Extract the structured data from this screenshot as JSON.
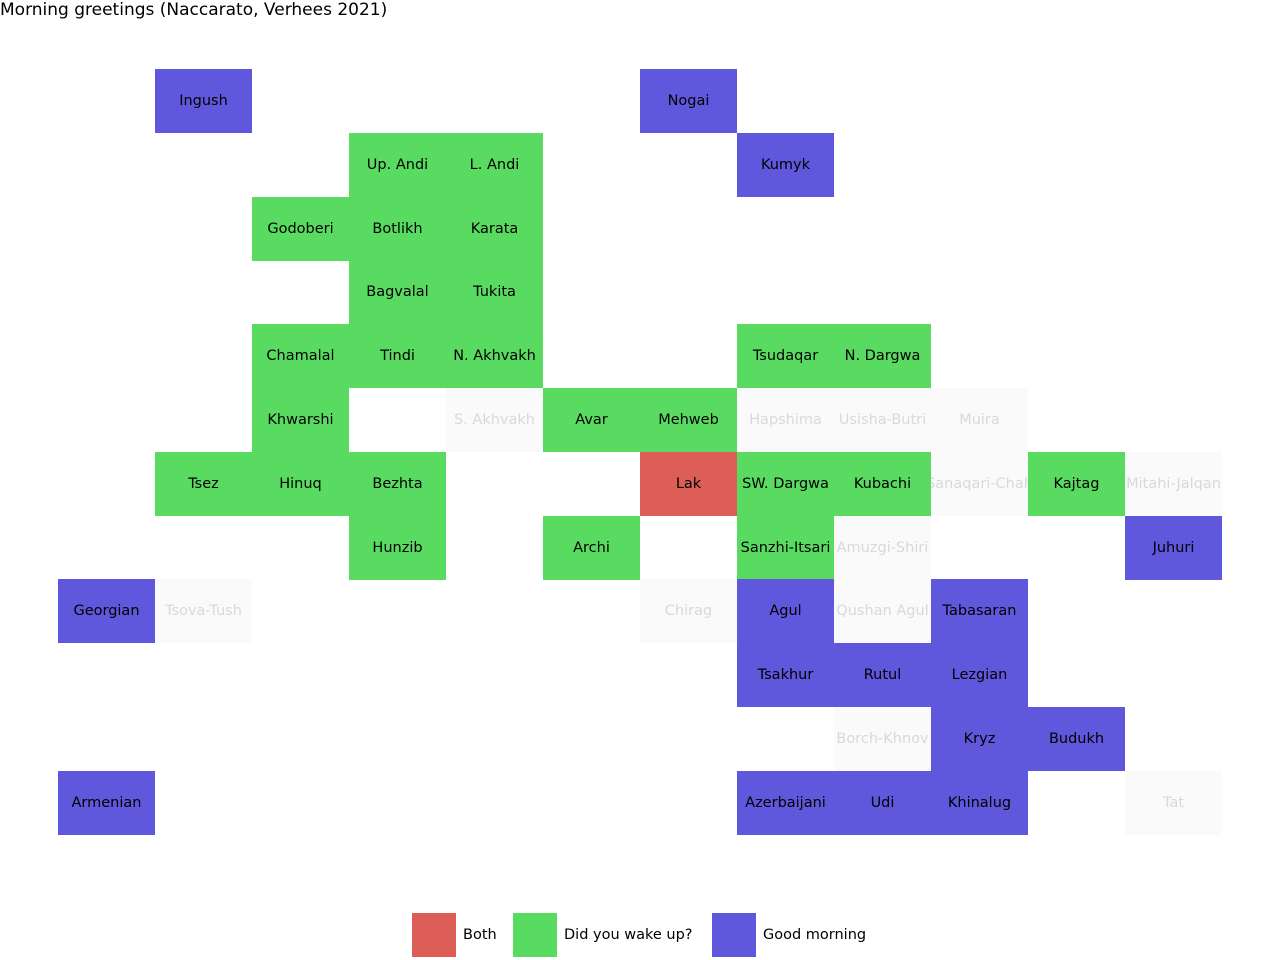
{
  "chart_data": {
    "type": "heatmap",
    "title": "Morning greetings (Naccarato, Verhees 2021)",
    "colors": {
      "both": "#dd5e57",
      "wake": "#58db60",
      "good": "#5f57dc",
      "none": "#fafafa"
    },
    "legend": [
      {
        "key": "both",
        "label": "Both"
      },
      {
        "key": "wake",
        "label": "Did you wake up?"
      },
      {
        "key": "good",
        "label": "Good morning"
      }
    ],
    "legend_position": "bottom-center",
    "grid": {
      "columns": 12,
      "rows": 12
    },
    "cells": [
      {
        "name": "Ingush",
        "col": 1,
        "row": 0,
        "category": "good"
      },
      {
        "name": "Nogai",
        "col": 6,
        "row": 0,
        "category": "good"
      },
      {
        "name": "Up. Andi",
        "col": 3,
        "row": 1,
        "category": "wake"
      },
      {
        "name": "L. Andi",
        "col": 4,
        "row": 1,
        "category": "wake"
      },
      {
        "name": "Kumyk",
        "col": 7,
        "row": 1,
        "category": "good"
      },
      {
        "name": "Godoberi",
        "col": 2,
        "row": 2,
        "category": "wake"
      },
      {
        "name": "Botlikh",
        "col": 3,
        "row": 2,
        "category": "wake"
      },
      {
        "name": "Karata",
        "col": 4,
        "row": 2,
        "category": "wake"
      },
      {
        "name": "Bagvalal",
        "col": 3,
        "row": 3,
        "category": "wake"
      },
      {
        "name": "Tukita",
        "col": 4,
        "row": 3,
        "category": "wake"
      },
      {
        "name": "Chamalal",
        "col": 2,
        "row": 4,
        "category": "wake"
      },
      {
        "name": "Tindi",
        "col": 3,
        "row": 4,
        "category": "wake"
      },
      {
        "name": "N. Akhvakh",
        "col": 4,
        "row": 4,
        "category": "wake"
      },
      {
        "name": "Tsudaqar",
        "col": 7,
        "row": 4,
        "category": "wake"
      },
      {
        "name": "N. Dargwa",
        "col": 8,
        "row": 4,
        "category": "wake"
      },
      {
        "name": "Khwarshi",
        "col": 2,
        "row": 5,
        "category": "wake"
      },
      {
        "name": "S. Akhvakh",
        "col": 4,
        "row": 5,
        "category": "none"
      },
      {
        "name": "Avar",
        "col": 5,
        "row": 5,
        "category": "wake"
      },
      {
        "name": "Mehweb",
        "col": 6,
        "row": 5,
        "category": "wake"
      },
      {
        "name": "Hapshima",
        "col": 7,
        "row": 5,
        "category": "none"
      },
      {
        "name": "Usisha-Butri",
        "col": 8,
        "row": 5,
        "category": "none"
      },
      {
        "name": "Muira",
        "col": 9,
        "row": 5,
        "category": "none"
      },
      {
        "name": "Tsez",
        "col": 1,
        "row": 6,
        "category": "wake"
      },
      {
        "name": "Hinuq",
        "col": 2,
        "row": 6,
        "category": "wake"
      },
      {
        "name": "Bezhta",
        "col": 3,
        "row": 6,
        "category": "wake"
      },
      {
        "name": "Lak",
        "col": 6,
        "row": 6,
        "category": "both"
      },
      {
        "name": "SW. Dargwa",
        "col": 7,
        "row": 6,
        "category": "wake"
      },
      {
        "name": "Kubachi",
        "col": 8,
        "row": 6,
        "category": "wake"
      },
      {
        "name": "Sanaqari-Chah",
        "col": 9,
        "row": 6,
        "category": "none"
      },
      {
        "name": "Kajtag",
        "col": 10,
        "row": 6,
        "category": "wake"
      },
      {
        "name": "Mitahi-Jalqan",
        "col": 11,
        "row": 6,
        "category": "none"
      },
      {
        "name": "Hunzib",
        "col": 3,
        "row": 7,
        "category": "wake"
      },
      {
        "name": "Archi",
        "col": 5,
        "row": 7,
        "category": "wake"
      },
      {
        "name": "Sanzhi-Itsari",
        "col": 7,
        "row": 7,
        "category": "wake"
      },
      {
        "name": "Amuzgi-Shiri",
        "col": 8,
        "row": 7,
        "category": "none"
      },
      {
        "name": "Juhuri",
        "col": 11,
        "row": 7,
        "category": "good"
      },
      {
        "name": "Georgian",
        "col": 0,
        "row": 8,
        "category": "good"
      },
      {
        "name": "Tsova-Tush",
        "col": 1,
        "row": 8,
        "category": "none"
      },
      {
        "name": "Chirag",
        "col": 6,
        "row": 8,
        "category": "none"
      },
      {
        "name": "Agul",
        "col": 7,
        "row": 8,
        "category": "good"
      },
      {
        "name": "Qushan Agul",
        "col": 8,
        "row": 8,
        "category": "none"
      },
      {
        "name": "Tabasaran",
        "col": 9,
        "row": 8,
        "category": "good"
      },
      {
        "name": "Tsakhur",
        "col": 7,
        "row": 9,
        "category": "good"
      },
      {
        "name": "Rutul",
        "col": 8,
        "row": 9,
        "category": "good"
      },
      {
        "name": "Lezgian",
        "col": 9,
        "row": 9,
        "category": "good"
      },
      {
        "name": "Borch-Khnov",
        "col": 8,
        "row": 10,
        "category": "none"
      },
      {
        "name": "Kryz",
        "col": 9,
        "row": 10,
        "category": "good"
      },
      {
        "name": "Budukh",
        "col": 10,
        "row": 10,
        "category": "good"
      },
      {
        "name": "Armenian",
        "col": 0,
        "row": 11,
        "category": "good"
      },
      {
        "name": "Azerbaijani",
        "col": 7,
        "row": 11,
        "category": "good"
      },
      {
        "name": "Udi",
        "col": 8,
        "row": 11,
        "category": "good"
      },
      {
        "name": "Khinalug",
        "col": 9,
        "row": 11,
        "category": "good"
      },
      {
        "name": "Tat",
        "col": 11,
        "row": 11,
        "category": "none"
      }
    ]
  }
}
